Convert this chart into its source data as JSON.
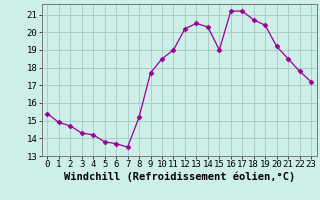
{
  "x": [
    0,
    1,
    2,
    3,
    4,
    5,
    6,
    7,
    8,
    9,
    10,
    11,
    12,
    13,
    14,
    15,
    16,
    17,
    18,
    19,
    20,
    21,
    22,
    23
  ],
  "y": [
    15.4,
    14.9,
    14.7,
    14.3,
    14.2,
    13.8,
    13.7,
    13.5,
    15.2,
    17.7,
    18.5,
    19.0,
    20.2,
    20.5,
    20.3,
    19.0,
    21.2,
    21.2,
    20.7,
    20.4,
    19.2,
    18.5,
    17.8,
    17.2
  ],
  "line_color": "#990099",
  "marker": "D",
  "marker_size": 2.5,
  "bg_color": "#ceeee8",
  "grid_color": "#aacccc",
  "xlabel": "Windchill (Refroidissement éolien,°C)",
  "ylabel": "",
  "xlim": [
    -0.5,
    23.5
  ],
  "ylim": [
    13,
    21.6
  ],
  "yticks": [
    13,
    14,
    15,
    16,
    17,
    18,
    19,
    20,
    21
  ],
  "xticks": [
    0,
    1,
    2,
    3,
    4,
    5,
    6,
    7,
    8,
    9,
    10,
    11,
    12,
    13,
    14,
    15,
    16,
    17,
    18,
    19,
    20,
    21,
    22,
    23
  ],
  "tick_label_size": 6.5,
  "xlabel_size": 7.5
}
